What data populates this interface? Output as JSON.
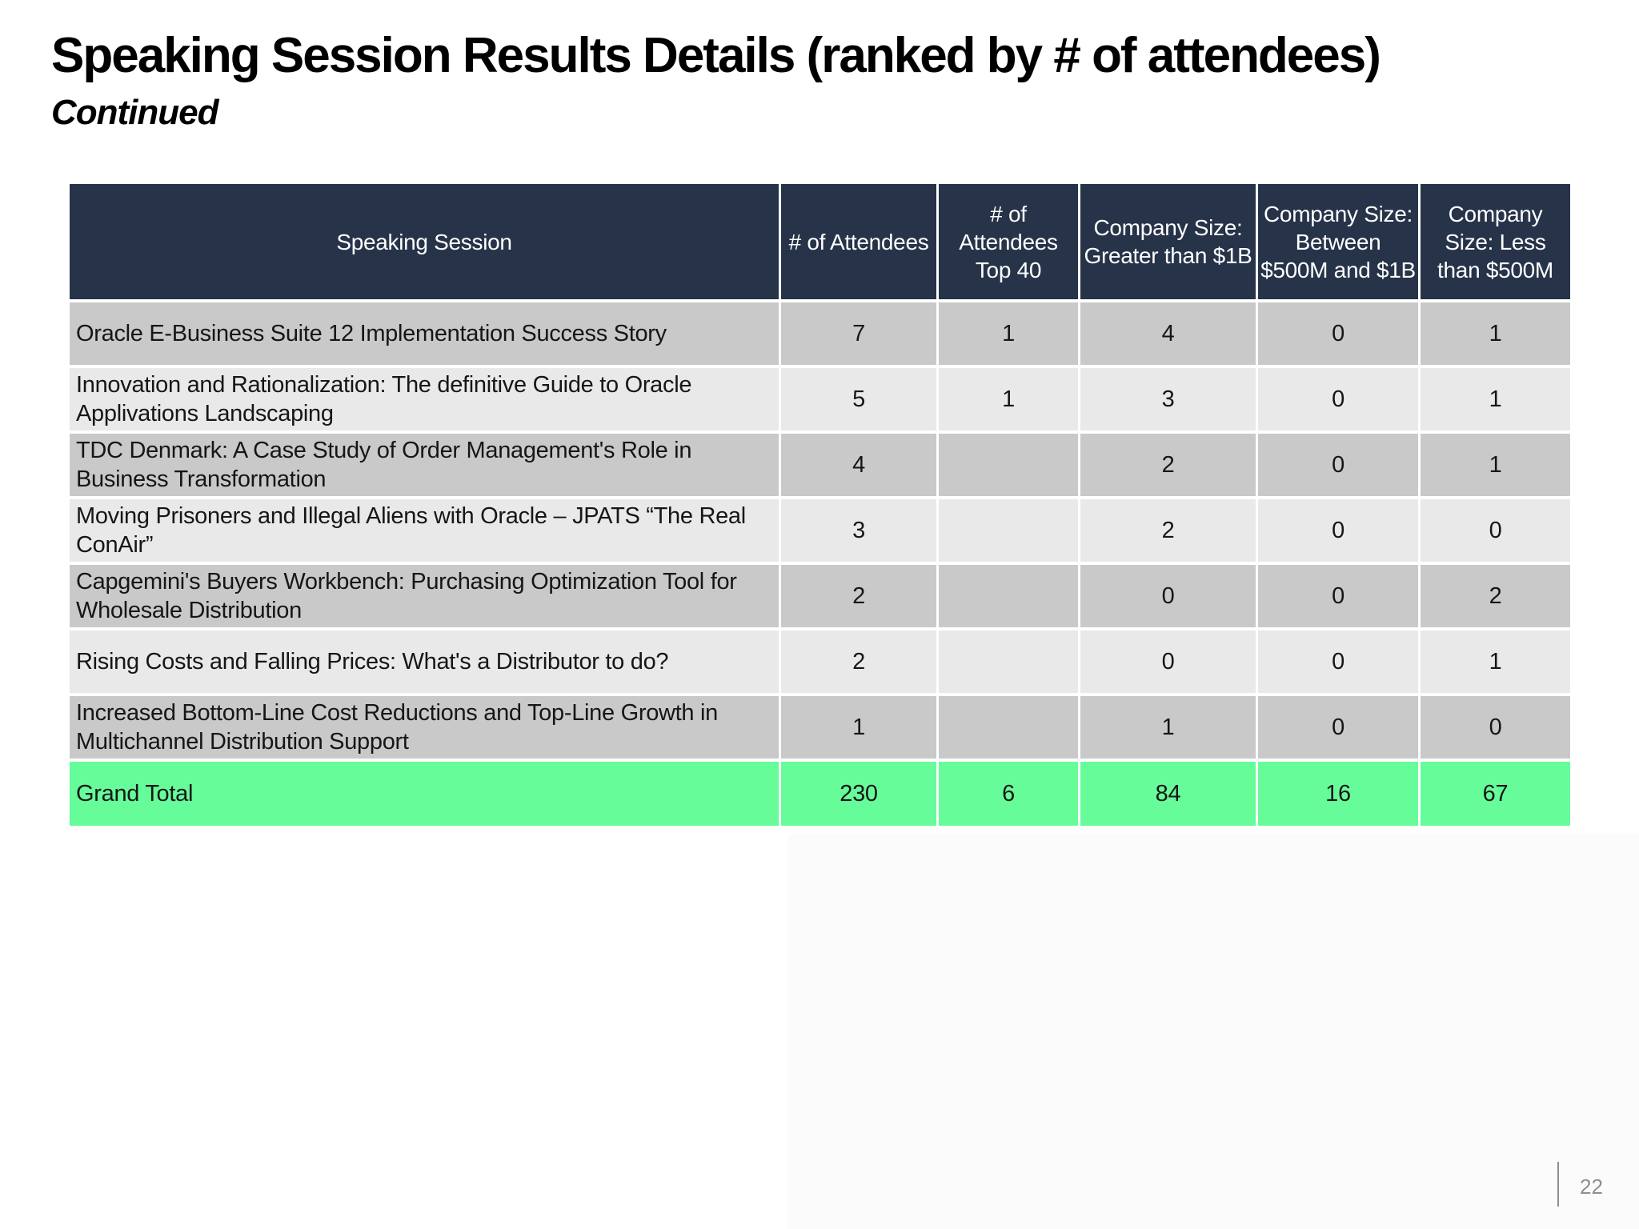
{
  "slide": {
    "title": "Speaking Session Results Details (ranked by # of attendees)",
    "subtitle": "Continued",
    "page_number": "22"
  },
  "table": {
    "columns": [
      "Speaking Session",
      "# of Attendees",
      "# of Attendees Top 40",
      "Company Size: Greater than $1B",
      "Company Size: Between $500M and $1B",
      "Company Size: Less than $500M"
    ],
    "rows": [
      {
        "session": "Oracle E-Business Suite 12 Implementation Success Story",
        "values": [
          "7",
          "1",
          "4",
          "0",
          "1"
        ]
      },
      {
        "session": "Innovation and Rationalization: The definitive Guide to Oracle Applivations Landscaping",
        "values": [
          "5",
          "1",
          "3",
          "0",
          "1"
        ]
      },
      {
        "session": "TDC Denmark: A Case Study of Order Management's Role in Business Transformation",
        "values": [
          "4",
          "",
          "2",
          "0",
          "1"
        ]
      },
      {
        "session": "Moving Prisoners and Illegal Aliens with Oracle – JPATS “The Real ConAir”",
        "values": [
          "3",
          "",
          "2",
          "0",
          "0"
        ]
      },
      {
        "session": "Capgemini's Buyers Workbench: Purchasing Optimization Tool for Wholesale Distribution",
        "values": [
          "2",
          "",
          "0",
          "0",
          "2"
        ]
      },
      {
        "session": "Rising Costs and Falling Prices: What's a Distributor to do?",
        "values": [
          "2",
          "",
          "0",
          "0",
          "1"
        ]
      },
      {
        "session": "Increased Bottom-Line Cost Reductions and Top-Line Growth in Multichannel Distribution Support",
        "values": [
          "1",
          "",
          "1",
          "0",
          "0"
        ]
      }
    ],
    "grand_total": {
      "label": "Grand Total",
      "values": [
        "230",
        "6",
        "84",
        "16",
        "67"
      ]
    }
  },
  "colors": {
    "header_bg": "#263349",
    "header_text": "#ffffff",
    "row_dark": "#c9c9c9",
    "row_light": "#e9e9e9",
    "grand_total_bg": "#66fc9a",
    "page_number_text": "#8f8f8f"
  }
}
